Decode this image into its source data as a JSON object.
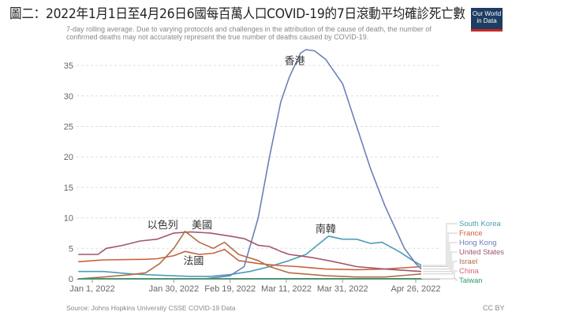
{
  "title": "圖二：2022年1月1日至4月26日6國每百萬人口COVID-19的7日滾動平均確診死亡數",
  "subtitle": "7-day rolling average. Due to varying protocols and challenges in the attribution of the cause of death, the number of confirmed deaths may not accurately represent the true number of deaths caused by COVID-19.",
  "logo": "Our World in Data",
  "source": "Source: Johns Hopkins University CSSE COVID-19 Data",
  "license": "CC BY",
  "chart_data": {
    "type": "line",
    "title": "",
    "xlabel": "",
    "ylabel": "",
    "ylim": [
      0,
      37.5
    ],
    "yticks": [
      "0",
      "5",
      "10",
      "15",
      "20",
      "25",
      "30",
      "35"
    ],
    "yticks_values": [
      0,
      5,
      10,
      15,
      20,
      25,
      30,
      35
    ],
    "xticks": [
      {
        "date": "2022-01-01",
        "label": "Jan 1, 2022"
      },
      {
        "date": "2022-01-30",
        "label": "Jan 30, 2022"
      },
      {
        "date": "2022-02-19",
        "label": "Feb 19, 2022"
      },
      {
        "date": "2022-03-11",
        "label": "Mar 11, 2022"
      },
      {
        "date": "2022-03-31",
        "label": "Mar 31, 2022"
      },
      {
        "date": "2022-04-26",
        "label": "Apr 26, 2022"
      }
    ],
    "grid": true,
    "legend_position": "right",
    "annotations": [
      {
        "text": "香港",
        "date": "2022-03-14",
        "y": 35.2
      },
      {
        "text": "南韓",
        "date": "2022-03-25",
        "y": 7.6
      },
      {
        "text": "以色列",
        "date": "2022-01-26",
        "y": 8.3
      },
      {
        "text": "美國",
        "date": "2022-02-09",
        "y": 8.3
      },
      {
        "text": "法國",
        "date": "2022-02-06",
        "y": 2.4
      }
    ],
    "series": [
      {
        "name": "South Korea",
        "color": "#4b9db6",
        "points": [
          [
            "2021-12-27",
            1.2
          ],
          [
            "2022-01-05",
            1.2
          ],
          [
            "2022-01-15",
            0.8
          ],
          [
            "2022-01-25",
            0.6
          ],
          [
            "2022-02-05",
            0.4
          ],
          [
            "2022-02-12",
            0.4
          ],
          [
            "2022-02-19",
            0.7
          ],
          [
            "2022-02-26",
            1.2
          ],
          [
            "2022-03-05",
            2
          ],
          [
            "2022-03-12",
            3
          ],
          [
            "2022-03-18",
            4
          ],
          [
            "2022-03-22",
            5.5
          ],
          [
            "2022-03-26",
            7
          ],
          [
            "2022-03-31",
            6.5
          ],
          [
            "2022-04-05",
            6.5
          ],
          [
            "2022-04-10",
            5.8
          ],
          [
            "2022-04-14",
            6
          ],
          [
            "2022-04-20",
            4.5
          ],
          [
            "2022-04-25",
            3
          ],
          [
            "2022-04-28",
            2.2
          ]
        ]
      },
      {
        "name": "France",
        "color": "#c8623c",
        "points": [
          [
            "2021-12-27",
            2.8
          ],
          [
            "2022-01-05",
            3.1
          ],
          [
            "2022-01-20",
            3.2
          ],
          [
            "2022-01-24",
            3.3
          ],
          [
            "2022-01-30",
            3.8
          ],
          [
            "2022-02-03",
            4.5
          ],
          [
            "2022-02-08",
            4
          ],
          [
            "2022-02-13",
            4.2
          ],
          [
            "2022-02-17",
            4.8
          ],
          [
            "2022-02-22",
            3
          ],
          [
            "2022-03-01",
            2.5
          ],
          [
            "2022-03-08",
            2.2
          ],
          [
            "2022-03-15",
            2
          ],
          [
            "2022-03-25",
            1.6
          ],
          [
            "2022-04-05",
            1.5
          ],
          [
            "2022-04-15",
            1.6
          ],
          [
            "2022-04-28",
            2
          ]
        ]
      },
      {
        "name": "Hong Kong",
        "color": "#6b80b8",
        "points": [
          [
            "2021-12-27",
            0
          ],
          [
            "2022-02-10",
            0
          ],
          [
            "2022-02-19",
            0.5
          ],
          [
            "2022-02-24",
            2
          ],
          [
            "2022-03-01",
            10
          ],
          [
            "2022-03-05",
            20
          ],
          [
            "2022-03-09",
            29
          ],
          [
            "2022-03-12",
            33
          ],
          [
            "2022-03-16",
            37
          ],
          [
            "2022-03-18",
            37.6
          ],
          [
            "2022-03-21",
            37.4
          ],
          [
            "2022-03-25",
            36
          ],
          [
            "2022-03-31",
            32
          ],
          [
            "2022-04-05",
            25
          ],
          [
            "2022-04-10",
            18
          ],
          [
            "2022-04-15",
            12
          ],
          [
            "2022-04-19",
            8
          ],
          [
            "2022-04-22",
            5
          ],
          [
            "2022-04-26",
            2.5
          ],
          [
            "2022-04-28",
            1.6
          ]
        ]
      },
      {
        "name": "United States",
        "color": "#a0566f",
        "points": [
          [
            "2021-12-27",
            4
          ],
          [
            "2022-01-03",
            4
          ],
          [
            "2022-01-06",
            5
          ],
          [
            "2022-01-12",
            5.5
          ],
          [
            "2022-01-18",
            6.2
          ],
          [
            "2022-01-24",
            6.5
          ],
          [
            "2022-01-30",
            7.5
          ],
          [
            "2022-02-05",
            7.7
          ],
          [
            "2022-02-12",
            7.5
          ],
          [
            "2022-02-19",
            7
          ],
          [
            "2022-02-24",
            6.6
          ],
          [
            "2022-03-01",
            5.5
          ],
          [
            "2022-03-05",
            5.3
          ],
          [
            "2022-03-09",
            4.5
          ],
          [
            "2022-03-12",
            4
          ],
          [
            "2022-03-20",
            3.5
          ],
          [
            "2022-03-28",
            2.8
          ],
          [
            "2022-04-05",
            2
          ],
          [
            "2022-04-15",
            1.6
          ],
          [
            "2022-04-28",
            1.2
          ]
        ]
      },
      {
        "name": "Israel",
        "color": "#b36e45",
        "points": [
          [
            "2021-12-27",
            0
          ],
          [
            "2022-01-05",
            0.3
          ],
          [
            "2022-01-15",
            0.7
          ],
          [
            "2022-01-20",
            1
          ],
          [
            "2022-01-25",
            2.5
          ],
          [
            "2022-01-30",
            5
          ],
          [
            "2022-02-03",
            7.8
          ],
          [
            "2022-02-08",
            6
          ],
          [
            "2022-02-13",
            5
          ],
          [
            "2022-02-17",
            6
          ],
          [
            "2022-02-22",
            4
          ],
          [
            "2022-03-01",
            3
          ],
          [
            "2022-03-05",
            2
          ],
          [
            "2022-03-12",
            1
          ],
          [
            "2022-03-25",
            0.5
          ],
          [
            "2022-04-05",
            0.3
          ],
          [
            "2022-04-15",
            0.3
          ],
          [
            "2022-04-28",
            0.8
          ]
        ]
      },
      {
        "name": "China",
        "color": "#d95f7c",
        "points": [
          [
            "2021-12-27",
            0
          ],
          [
            "2022-04-28",
            0
          ]
        ]
      },
      {
        "name": "Taiwan",
        "color": "#2f9a6b",
        "points": [
          [
            "2021-12-27",
            0.01
          ],
          [
            "2022-04-28",
            0.02
          ]
        ]
      }
    ]
  }
}
